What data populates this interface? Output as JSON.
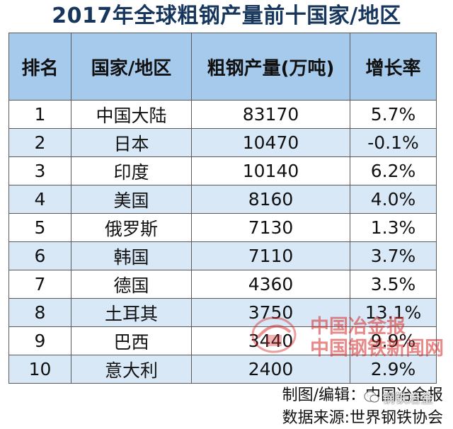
{
  "title": "2017年全球粗钢产量前十国家/地区",
  "table": {
    "headers": [
      "排名",
      "国家/地区",
      "粗钢产量(万吨)",
      "增长率"
    ],
    "rows": [
      [
        "1",
        "中国大陆",
        "83170",
        "5.7%"
      ],
      [
        "2",
        "日本",
        "10470",
        "-0.1%"
      ],
      [
        "3",
        "印度",
        "10140",
        "6.2%"
      ],
      [
        "4",
        "美国",
        "8160",
        "4.0%"
      ],
      [
        "5",
        "俄罗斯",
        "7130",
        "1.3%"
      ],
      [
        "6",
        "韩国",
        "7110",
        "3.7%"
      ],
      [
        "7",
        "德国",
        "4360",
        "3.5%"
      ],
      [
        "8",
        "土耳其",
        "3750",
        "13.1%"
      ],
      [
        "9",
        "巴西",
        "3440",
        "9.9%"
      ],
      [
        "10",
        "意大利",
        "2400",
        "2.9%"
      ]
    ]
  },
  "watermark": {
    "line1": "中国冶金报",
    "line2": "中国钢铁新闻网"
  },
  "footer": {
    "editor": "制图/编辑：中国冶金报",
    "source": "数据来源:世界钢铁协会"
  },
  "corner_badge": {
    "text": "钢铁冶金"
  },
  "colors": {
    "header_bg": "#a6caec",
    "alt_row_bg": "#d8e8f7",
    "title": "#17365d"
  }
}
